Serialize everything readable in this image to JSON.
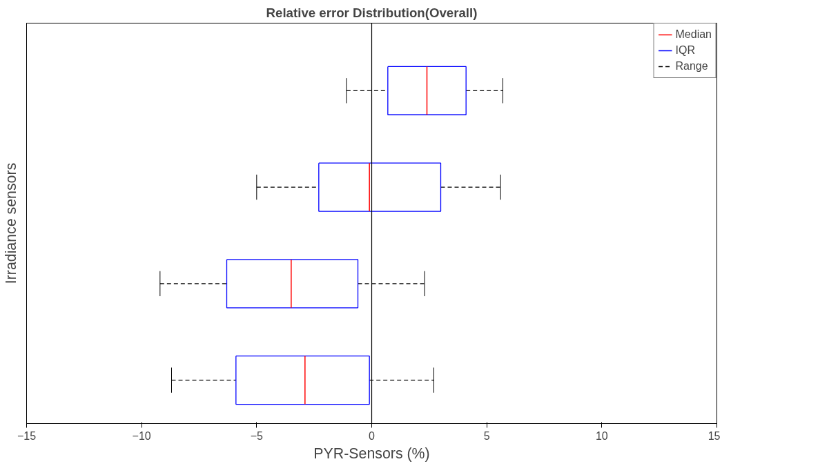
{
  "chart_data": {
    "type": "box",
    "orientation": "horizontal",
    "title": "Relative error Distribution(Overall)",
    "xlabel": "PYR-Sensors (%)",
    "ylabel": "Irradiance sensors",
    "categories": [
      null,
      null,
      null,
      null
    ],
    "color": "#0000ff",
    "boxes": [
      {
        "low": -1.1,
        "q1": 0.7,
        "median": 2.4,
        "q3": 4.1,
        "high": 5.7
      },
      {
        "low": -5.0,
        "q1": -2.3,
        "median": -0.1,
        "q3": 3.0,
        "high": 5.6
      },
      {
        "low": -9.2,
        "q1": -6.3,
        "median": -3.5,
        "q3": -0.6,
        "high": 2.3
      },
      {
        "low": -8.7,
        "q1": -5.9,
        "median": -2.9,
        "q3": -0.1,
        "high": 2.7
      }
    ],
    "xlim": [
      -15,
      15
    ],
    "xticks": [
      -15,
      -10,
      -5,
      0,
      5,
      10,
      15
    ],
    "ref_lines": [
      {
        "axis": "x",
        "value": 0,
        "color": "#000000"
      }
    ],
    "annotations": [
      "Median",
      "IQR",
      "Range"
    ],
    "grid": false
  }
}
